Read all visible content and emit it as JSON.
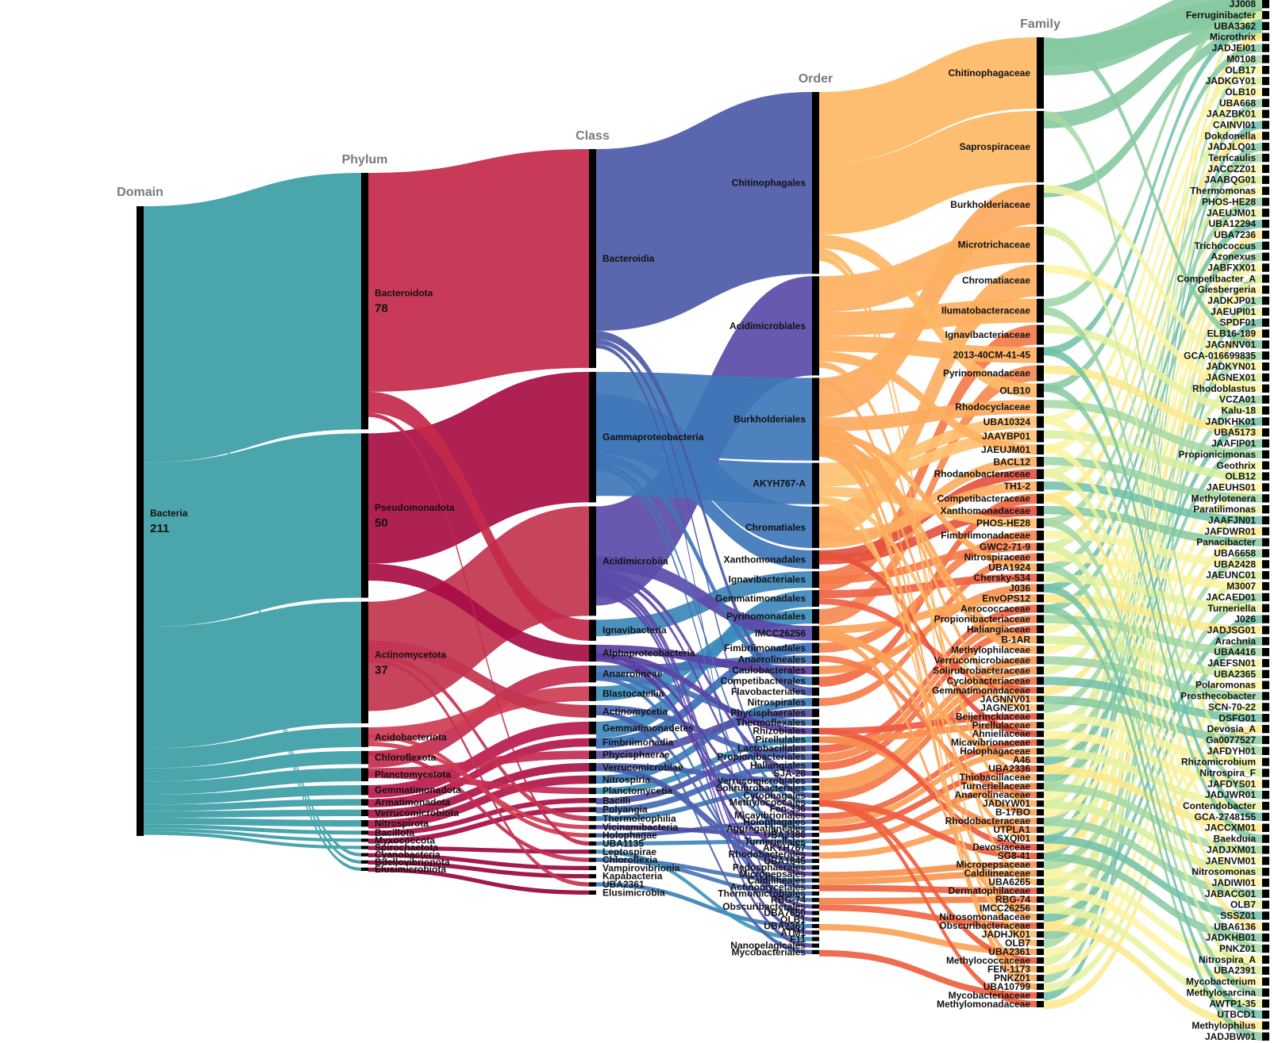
{
  "columns": [
    {
      "key": "domain",
      "title": "Domain",
      "nodes": [
        {
          "label": "Bacteria",
          "count": "211"
        }
      ]
    },
    {
      "key": "phylum",
      "title": "Phylum",
      "nodes": [
        {
          "label": "Bacteroidota",
          "count": "78"
        },
        {
          "label": "Pseudomonadota",
          "count": "50"
        },
        {
          "label": "Actinomycetota",
          "count": "37"
        },
        {
          "label": "Acidobacteriota"
        },
        {
          "label": "Chloroflexota"
        },
        {
          "label": "Planctomycetota"
        },
        {
          "label": "Gemmatimonadota"
        },
        {
          "label": "Armatimonadota"
        },
        {
          "label": "Verrucomicrobiota"
        },
        {
          "label": "Nitrospirota"
        },
        {
          "label": "Bacillota"
        },
        {
          "label": "Myxococcota"
        },
        {
          "label": "Spirochaetota"
        },
        {
          "label": "Cyanobacteria"
        },
        {
          "label": "Bdellovibrionota"
        },
        {
          "label": "Elusimicrobiota"
        }
      ]
    },
    {
      "key": "class",
      "title": "Class",
      "nodes": [
        {
          "label": "Bacteroidia"
        },
        {
          "label": "Gammaproteobacteria"
        },
        {
          "label": "Acidimicrobiia"
        },
        {
          "label": "Ignavibacteria"
        },
        {
          "label": "Alphaproteobacteria"
        },
        {
          "label": "Anaerolineae"
        },
        {
          "label": "Blastocatellia"
        },
        {
          "label": "Actinomycetia"
        },
        {
          "label": "Gemmatimonadetes"
        },
        {
          "label": "Fimbriimonadia"
        },
        {
          "label": "Phycisphaerae"
        },
        {
          "label": "Verrucomicrobiae"
        },
        {
          "label": "Nitrospiria"
        },
        {
          "label": "Planctomycetia"
        },
        {
          "label": "Bacilli"
        },
        {
          "label": "Polyangia"
        },
        {
          "label": "Thermoleophilia"
        },
        {
          "label": "Vicinamibacteria"
        },
        {
          "label": "Holophagae"
        },
        {
          "label": "UBA1135"
        },
        {
          "label": "Leptospirae"
        },
        {
          "label": "Chloroflexia"
        },
        {
          "label": "Vampirovibrionia"
        },
        {
          "label": "Kapabacteria"
        },
        {
          "label": "UBA2361"
        },
        {
          "label": "Elusimicrobia"
        }
      ]
    },
    {
      "key": "order",
      "title": "Order",
      "nodes": [
        {
          "label": "Chitinophagales"
        },
        {
          "label": "Acidimicrobiales"
        },
        {
          "label": "Burkholderiales"
        },
        {
          "label": "AKYH767-A"
        },
        {
          "label": "Chromatiales"
        },
        {
          "label": "Xanthomonadales"
        },
        {
          "label": "Ignavibacteriales"
        },
        {
          "label": "Gemmatimonadales"
        },
        {
          "label": "Pyrinomonadales"
        },
        {
          "label": "IMCC26256"
        },
        {
          "label": "Fimbriimonadales"
        },
        {
          "label": "Anaerolineales"
        },
        {
          "label": "Caulobacterales"
        },
        {
          "label": "Competibacterales"
        },
        {
          "label": "Flavobacteriales"
        },
        {
          "label": "Nitrospirales"
        },
        {
          "label": "Phycisphaerales"
        },
        {
          "label": "Thermoflexales"
        },
        {
          "label": "Rhizobiales"
        },
        {
          "label": "Pirellulales"
        },
        {
          "label": "Lactobacillales"
        },
        {
          "label": "Propionibacteriales"
        },
        {
          "label": "Haliangiales"
        },
        {
          "label": "SJA-28"
        },
        {
          "label": "Verrucomicrobiales"
        },
        {
          "label": "Solirubrobacterales"
        },
        {
          "label": "Cytophagales"
        },
        {
          "label": "Methylococcales"
        },
        {
          "label": "Fen-336"
        },
        {
          "label": "Micavibrionales"
        },
        {
          "label": "Holophagales"
        },
        {
          "label": "Aggregatilineales"
        },
        {
          "label": "UBA2386"
        },
        {
          "label": "Turneriellales"
        },
        {
          "label": "AKYH767"
        },
        {
          "label": "Rhodobacterales"
        },
        {
          "label": "UBA1845"
        },
        {
          "label": "Pedosphaerales"
        },
        {
          "label": "Micropepsales"
        },
        {
          "label": "Caldilineales"
        },
        {
          "label": "Actinomycetales"
        },
        {
          "label": "Thermomicrobiales"
        },
        {
          "label": "RBG-74"
        },
        {
          "label": "Obscuribacterales"
        },
        {
          "label": "UBA7650"
        },
        {
          "label": "OLB1"
        },
        {
          "label": "UBA2361"
        },
        {
          "label": "ATM1"
        },
        {
          "label": "F11"
        },
        {
          "label": "Nanopelagicales"
        },
        {
          "label": "Mycobacteriales"
        }
      ]
    },
    {
      "key": "family",
      "title": "Family",
      "nodes": [
        {
          "label": "Chitinophagaceae"
        },
        {
          "label": "Saprospiraceae"
        },
        {
          "label": "Burkholderiaceae"
        },
        {
          "label": "Microtrichaceae"
        },
        {
          "label": "Chromatiaceae"
        },
        {
          "label": "Ilumatobacteraceae"
        },
        {
          "label": "Ignavibacteriaceae"
        },
        {
          "label": "2013-40CM-41-45"
        },
        {
          "label": "Pyrinomonadaceae"
        },
        {
          "label": "OLB10"
        },
        {
          "label": "Rhodocyclaceae"
        },
        {
          "label": "UBA10324"
        },
        {
          "label": "JAAYBP01"
        },
        {
          "label": "JAEUJM01"
        },
        {
          "label": "BACL12"
        },
        {
          "label": "Rhodanobacteraceae"
        },
        {
          "label": "TH1-2"
        },
        {
          "label": "Competibacteraceae"
        },
        {
          "label": "Xanthomonadaceae"
        },
        {
          "label": "PHOS-HE28"
        },
        {
          "label": "Fimbriimonadaceae"
        },
        {
          "label": "GWC2-71-9"
        },
        {
          "label": "Nitrospiraceae"
        },
        {
          "label": "UBA1924"
        },
        {
          "label": "Chersky-534"
        },
        {
          "label": "J036"
        },
        {
          "label": "EnvOPS12"
        },
        {
          "label": "Aerococcaceae"
        },
        {
          "label": "Propionibacteriaceae"
        },
        {
          "label": "Haliangiaceae"
        },
        {
          "label": "B-1AR"
        },
        {
          "label": "Methylophilaceae"
        },
        {
          "label": "Verrucomicrobiaceae"
        },
        {
          "label": "Solirubrobacteraceae"
        },
        {
          "label": "Cyclobacteriaceae"
        },
        {
          "label": "Gemmatimonadaceae"
        },
        {
          "label": "JAGNNV01"
        },
        {
          "label": "JAGNEX01"
        },
        {
          "label": "Beijerinckiaceae"
        },
        {
          "label": "Pirellulaceae"
        },
        {
          "label": "Ahniellaceae"
        },
        {
          "label": "Micavibrionaceae"
        },
        {
          "label": "Holophagaceae"
        },
        {
          "label": "A46"
        },
        {
          "label": "UBA2336"
        },
        {
          "label": "Thiobacillaceae"
        },
        {
          "label": "Turneriellaceae"
        },
        {
          "label": "Anaerolineaceae"
        },
        {
          "label": "JADIYW01"
        },
        {
          "label": "B-17BO"
        },
        {
          "label": "Rhodobacteraceae"
        },
        {
          "label": "UTPLA1"
        },
        {
          "label": "SXQI01"
        },
        {
          "label": "Devosiaceae"
        },
        {
          "label": "SG8-41"
        },
        {
          "label": "Micropepsaceae"
        },
        {
          "label": "Caldilineaceae"
        },
        {
          "label": "UBA6265"
        },
        {
          "label": "Dermatophilaceae"
        },
        {
          "label": "RBG-74"
        },
        {
          "label": "IMCC26256"
        },
        {
          "label": "Nitrosomonadaceae"
        },
        {
          "label": "Obscuribacteraceae"
        },
        {
          "label": "JADHJK01"
        },
        {
          "label": "OLB7"
        },
        {
          "label": "UBA2361"
        },
        {
          "label": "Methylococcaceae"
        },
        {
          "label": "FEN-1173"
        },
        {
          "label": "PNKZ01"
        },
        {
          "label": "UBA10799"
        },
        {
          "label": "Mycobacteriaceae"
        },
        {
          "label": "Methylomonadaceae"
        }
      ]
    },
    {
      "key": "genus",
      "title": "",
      "nodes": [
        {
          "label": "JJ008"
        },
        {
          "label": "Ferruginibacter"
        },
        {
          "label": "UBA3362"
        },
        {
          "label": "Microthrix"
        },
        {
          "label": "JADJEI01"
        },
        {
          "label": "M0108"
        },
        {
          "label": "OLB17"
        },
        {
          "label": "JADKGY01"
        },
        {
          "label": "OLB10"
        },
        {
          "label": "UBA668"
        },
        {
          "label": "JAAZBK01"
        },
        {
          "label": "CAINVI01"
        },
        {
          "label": "Dokdonella"
        },
        {
          "label": "JADJLQ01"
        },
        {
          "label": "Terricaulis"
        },
        {
          "label": "JACCZZ01"
        },
        {
          "label": "JAABQG01"
        },
        {
          "label": "Thermomonas"
        },
        {
          "label": "PHOS-HE28"
        },
        {
          "label": "JAEUJM01"
        },
        {
          "label": "UBA12294"
        },
        {
          "label": "UBA7236"
        },
        {
          "label": "Trichococcus"
        },
        {
          "label": "Azonexus"
        },
        {
          "label": "JABFXX01"
        },
        {
          "label": "Competibacter_A"
        },
        {
          "label": "Giesbergeria"
        },
        {
          "label": "JADKJP01"
        },
        {
          "label": "JAEUPI01"
        },
        {
          "label": "SPDF01"
        },
        {
          "label": "ELB16-189"
        },
        {
          "label": "JAGNNV01"
        },
        {
          "label": "GCA-016699835"
        },
        {
          "label": "JADKYN01"
        },
        {
          "label": "JAGNEX01"
        },
        {
          "label": "Rhodoblastus"
        },
        {
          "label": "VCZA01"
        },
        {
          "label": "Kalu-18"
        },
        {
          "label": "JADKHK01"
        },
        {
          "label": "UBA5173"
        },
        {
          "label": "JAAFIP01"
        },
        {
          "label": "Propionicimonas"
        },
        {
          "label": "Geothrix"
        },
        {
          "label": "OLB12"
        },
        {
          "label": "JAEUHS01"
        },
        {
          "label": "Methylotenera"
        },
        {
          "label": "Paratilimonas"
        },
        {
          "label": "JAAFJN01"
        },
        {
          "label": "JAFDWR01"
        },
        {
          "label": "Panacibacter"
        },
        {
          "label": "UBA6658"
        },
        {
          "label": "UBA2428"
        },
        {
          "label": "JAEUNC01"
        },
        {
          "label": "M3007"
        },
        {
          "label": "JACAED01"
        },
        {
          "label": "Turneriella"
        },
        {
          "label": "J026"
        },
        {
          "label": "JADJSG01"
        },
        {
          "label": "Arachnia"
        },
        {
          "label": "UBA4416"
        },
        {
          "label": "JAEFSN01"
        },
        {
          "label": "UBA2365"
        },
        {
          "label": "Polaromonas"
        },
        {
          "label": "Prosthecobacter"
        },
        {
          "label": "SCN-70-22"
        },
        {
          "label": "DSFG01"
        },
        {
          "label": "Devosia_A"
        },
        {
          "label": "Ga0077527"
        },
        {
          "label": "JAFDYH01"
        },
        {
          "label": "Rhizomicrobium"
        },
        {
          "label": "Nitrospira_F"
        },
        {
          "label": "JAFDYS01"
        },
        {
          "label": "JADJWR01"
        },
        {
          "label": "Contendobacter"
        },
        {
          "label": "GCA-2748155"
        },
        {
          "label": "JACCXM01"
        },
        {
          "label": "Baekduia"
        },
        {
          "label": "JADJXM01"
        },
        {
          "label": "JAENVM01"
        },
        {
          "label": "Nitrosomonas"
        },
        {
          "label": "JADIWI01"
        },
        {
          "label": "JABACG01"
        },
        {
          "label": "OLB7"
        },
        {
          "label": "SSSZ01"
        },
        {
          "label": "UBA6136"
        },
        {
          "label": "JADKHB01"
        },
        {
          "label": "PNKZ01"
        },
        {
          "label": "Nitrospira_A"
        },
        {
          "label": "UBA2391"
        },
        {
          "label": "Mycobacterium"
        },
        {
          "label": "Methylosarcina"
        },
        {
          "label": "AWTP1-35"
        },
        {
          "label": "UTBCD1"
        },
        {
          "label": "Methylophilus"
        },
        {
          "label": "JADJBW01"
        }
      ]
    }
  ],
  "colors": {
    "bar": "#000000",
    "column_title": "#7a7a7a",
    "label": "#111111",
    "domain_flow": "#4ba5ad",
    "phylum_bacteroidota": "#c4294b",
    "phylum_pseudomonadota": "#a80d44",
    "class_bacteroidia": "#4c5aa8",
    "class_gamma": "#3f77b8",
    "order_chitinophagales": "#fdb966",
    "family_chitinophagaceae": "#86c9a0"
  }
}
